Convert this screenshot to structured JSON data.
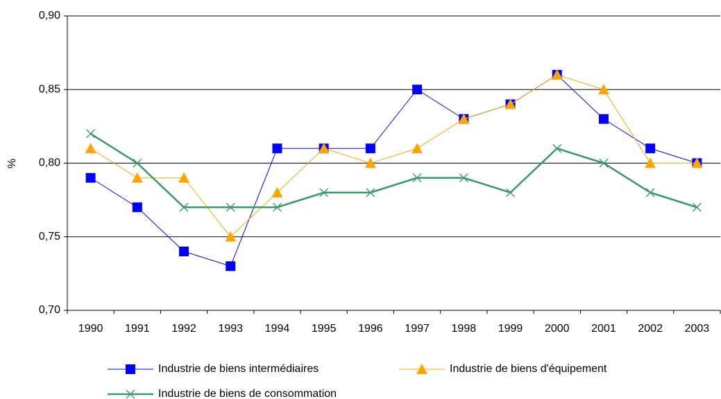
{
  "chart_data": {
    "type": "line",
    "y_label": "%",
    "categories": [
      "1990",
      "1991",
      "1992",
      "1993",
      "1994",
      "1995",
      "1996",
      "1997",
      "1998",
      "1999",
      "2000",
      "2001",
      "2002",
      "2003"
    ],
    "series": [
      {
        "name": "Industrie de biens intermédiaires",
        "color": "#0000ff",
        "marker": "square",
        "line_width": 1,
        "values": [
          0.79,
          0.77,
          0.74,
          0.73,
          0.81,
          0.81,
          0.81,
          0.85,
          0.83,
          0.84,
          0.86,
          0.83,
          0.81,
          0.8
        ]
      },
      {
        "name": "Industrie de biens d'équipement",
        "color": "#ffa500",
        "marker": "triangle",
        "line_width": 1,
        "values": [
          0.81,
          0.79,
          0.79,
          0.75,
          0.78,
          0.81,
          0.8,
          0.81,
          0.83,
          0.84,
          0.86,
          0.85,
          0.8,
          0.8
        ]
      },
      {
        "name": "Industrie de biens de consommation",
        "color": "#339966",
        "marker": "x",
        "line_width": 2.5,
        "values": [
          0.82,
          0.8,
          0.77,
          0.77,
          0.77,
          0.78,
          0.78,
          0.79,
          0.79,
          0.78,
          0.81,
          0.8,
          0.78,
          0.77
        ]
      }
    ],
    "ylim": [
      0.7,
      0.9
    ],
    "yticks": [
      {
        "value": 0.7,
        "label": "0,70"
      },
      {
        "value": 0.75,
        "label": "0,75"
      },
      {
        "value": 0.8,
        "label": "0,80"
      },
      {
        "value": 0.85,
        "label": "0,85"
      },
      {
        "value": 0.9,
        "label": "0,90"
      }
    ],
    "grid": true,
    "legend": "bottom"
  }
}
